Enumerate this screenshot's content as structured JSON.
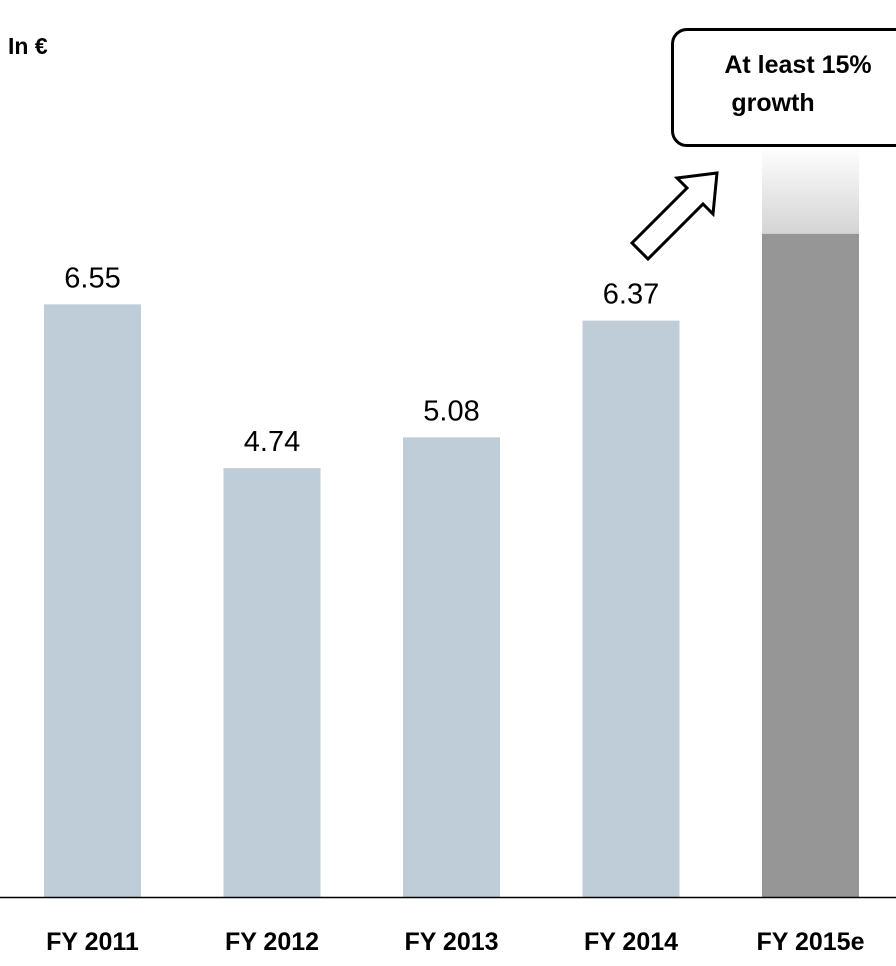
{
  "unit_label": "In €",
  "callout": {
    "line1": "At least 15%",
    "line2": "growth"
  },
  "chart_data": {
    "type": "bar",
    "categories": [
      "FY 2011",
      "FY 2012",
      "FY 2013",
      "FY 2014",
      "FY 2015e"
    ],
    "values": [
      6.55,
      4.74,
      5.08,
      6.37,
      null
    ],
    "data_labels": [
      "6.55",
      "4.74",
      "5.08",
      "6.37",
      ""
    ],
    "estimate": {
      "category": "FY 2015e",
      "base": 7.33,
      "growth_note": "At least 15% growth"
    },
    "colors": {
      "actual": "#bfcdd8",
      "estimate": "#969696",
      "estimate_fade": "#e3e3e3"
    },
    "title": "",
    "xlabel": "",
    "ylabel": "In €",
    "ylim": [
      0,
      8.3
    ],
    "grid": false
  }
}
